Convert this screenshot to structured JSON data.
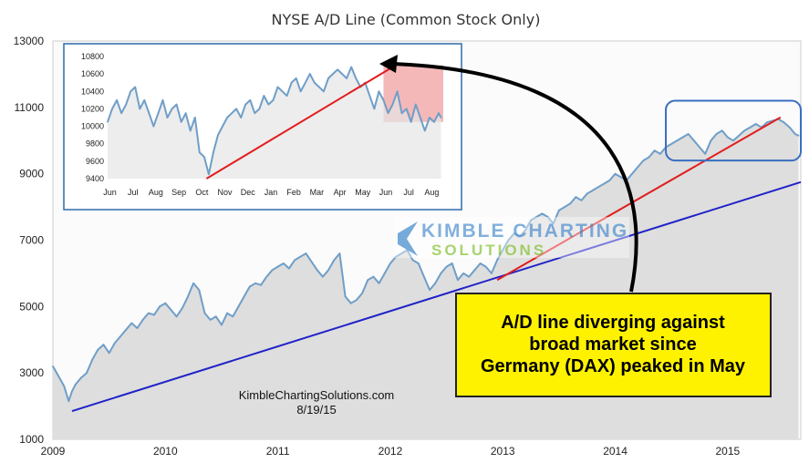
{
  "chart_data": [
    {
      "type": "line",
      "title": "NYSE A/D Line (Common Stock Only)",
      "xlabel": "",
      "ylabel": "",
      "xlim": [
        2009.0,
        2015.65
      ],
      "ylim": [
        1000,
        13000
      ],
      "grid": false,
      "y_ticks": [
        "1000",
        "3000",
        "5000",
        "7000",
        "9000",
        "11000",
        "13000"
      ],
      "x_ticks": [
        "2009",
        "2010",
        "2011",
        "2012",
        "2013",
        "2014",
        "2015"
      ],
      "series": [
        {
          "values_x": [
            2009.0,
            2009.05,
            2009.1,
            2009.14,
            2009.17,
            2009.2,
            2009.25,
            2009.3,
            2009.35,
            2009.4,
            2009.45,
            2009.5,
            2009.55,
            2009.6,
            2009.65,
            2009.7,
            2009.75,
            2009.8,
            2009.85,
            2009.9,
            2009.95,
            2010.0,
            2010.05,
            2010.1,
            2010.15,
            2010.2,
            2010.25,
            2010.3,
            2010.35,
            2010.4,
            2010.45,
            2010.5,
            2010.55,
            2010.6,
            2010.65,
            2010.7,
            2010.75,
            2010.8,
            2010.85,
            2010.9,
            2010.95,
            2011.0,
            2011.05,
            2011.1,
            2011.15,
            2011.2,
            2011.25,
            2011.3,
            2011.35,
            2011.4,
            2011.45,
            2011.5,
            2011.55,
            2011.6,
            2011.65,
            2011.7,
            2011.75,
            2011.8,
            2011.85,
            2011.9,
            2011.95,
            2012.0,
            2012.05,
            2012.1,
            2012.15,
            2012.2,
            2012.25,
            2012.3,
            2012.35,
            2012.4,
            2012.45,
            2012.5,
            2012.55,
            2012.6,
            2012.65,
            2012.7,
            2012.75,
            2012.8,
            2012.85,
            2012.9,
            2012.95,
            2013.0,
            2013.05,
            2013.1,
            2013.15,
            2013.2,
            2013.25,
            2013.3,
            2013.35,
            2013.4,
            2013.45,
            2013.5,
            2013.55,
            2013.6,
            2013.65,
            2013.7,
            2013.75,
            2013.8,
            2013.85,
            2013.9,
            2013.95,
            2014.0,
            2014.05,
            2014.1,
            2014.15,
            2014.2,
            2014.25,
            2014.3,
            2014.35,
            2014.4,
            2014.45,
            2014.5,
            2014.55,
            2014.6,
            2014.65,
            2014.7,
            2014.75,
            2014.8,
            2014.85,
            2014.9,
            2014.95,
            2015.0,
            2015.05,
            2015.1,
            2015.15,
            2015.2,
            2015.25,
            2015.3,
            2015.35,
            2015.4,
            2015.45,
            2015.5,
            2015.55,
            2015.6,
            2015.63
          ],
          "values": [
            3200,
            2900,
            2600,
            2150,
            2450,
            2650,
            2850,
            3000,
            3400,
            3700,
            3850,
            3600,
            3900,
            4100,
            4300,
            4500,
            4350,
            4600,
            4800,
            4750,
            5000,
            5100,
            4900,
            4700,
            4950,
            5300,
            5700,
            5500,
            4800,
            4600,
            4700,
            4450,
            4800,
            4700,
            5000,
            5300,
            5600,
            5700,
            5650,
            5900,
            6100,
            6200,
            6300,
            6150,
            6400,
            6500,
            6600,
            6350,
            6100,
            5900,
            6100,
            6400,
            6600,
            5300,
            5100,
            5200,
            5400,
            5800,
            5900,
            5700,
            6000,
            6300,
            6500,
            6600,
            6700,
            6400,
            6300,
            5900,
            5500,
            5700,
            6000,
            6200,
            6300,
            5800,
            6000,
            5900,
            6100,
            6300,
            6200,
            6000,
            6400,
            6700,
            7000,
            7200,
            7100,
            7300,
            7600,
            7700,
            7800,
            7700,
            7500,
            7900,
            8000,
            8100,
            8300,
            8200,
            8400,
            8500,
            8600,
            8700,
            8800,
            9000,
            8900,
            8800,
            9000,
            9200,
            9400,
            9500,
            9700,
            9600,
            9800,
            9900,
            10000,
            10100,
            10200,
            10000,
            9800,
            9600,
            10000,
            10200,
            10300,
            10100,
            10000,
            10150,
            10300,
            10400,
            10500,
            10400,
            10550,
            10600,
            10650,
            10550,
            10400,
            10200,
            10150
          ],
          "color": "#6f9ec8"
        }
      ],
      "trendlines": [
        {
          "x": [
            2009.17,
            2015.65
          ],
          "y": [
            1850,
            8750
          ],
          "color": "#1f22c8"
        },
        {
          "x": [
            2012.95,
            2015.47
          ],
          "y": [
            5800,
            10700
          ],
          "color": "#e21d1d"
        }
      ],
      "highlight_region": {
        "x": [
          2014.45,
          2015.65
        ],
        "y": [
          9400,
          11200
        ]
      },
      "colors": {
        "background_fill": "#dedede",
        "border": "#1e5aa0",
        "arrow": "#000000",
        "callout_bg": "#fff200"
      }
    },
    {
      "type": "line",
      "title": "",
      "inset": true,
      "xlabel": "",
      "ylabel": "",
      "ylim": [
        9400,
        10800
      ],
      "y_ticks": [
        "9400",
        "9600",
        "9800",
        "10000",
        "10200",
        "10400",
        "10600",
        "10800"
      ],
      "x_ticks": [
        "Jun",
        "Jul",
        "Aug",
        "Sep",
        "Oct",
        "Nov",
        "Dec",
        "Jan",
        "Feb",
        "Mar",
        "Apr",
        "May",
        "Jun",
        "Jul",
        "Aug"
      ],
      "xlim": [
        0,
        14.6
      ],
      "series": [
        {
          "values_x": [
            0,
            0.2,
            0.4,
            0.6,
            0.8,
            1.0,
            1.2,
            1.4,
            1.6,
            1.8,
            2.0,
            2.2,
            2.4,
            2.6,
            2.8,
            3.0,
            3.2,
            3.4,
            3.6,
            3.8,
            4.0,
            4.2,
            4.4,
            4.6,
            4.8,
            5.0,
            5.2,
            5.4,
            5.6,
            5.8,
            6.0,
            6.2,
            6.4,
            6.6,
            6.8,
            7.0,
            7.2,
            7.4,
            7.6,
            7.8,
            8.0,
            8.2,
            8.4,
            8.6,
            8.8,
            9.0,
            9.2,
            9.4,
            9.6,
            9.8,
            10.0,
            10.2,
            10.4,
            10.6,
            10.8,
            11.0,
            11.2,
            11.4,
            11.6,
            11.8,
            12.0,
            12.2,
            12.4,
            12.6,
            12.8,
            13.0,
            13.2,
            13.4,
            13.6,
            13.8,
            14.0,
            14.2,
            14.4,
            14.5
          ],
          "values": [
            10050,
            10200,
            10300,
            10150,
            10250,
            10400,
            10450,
            10200,
            10300,
            10150,
            10000,
            10150,
            10300,
            10100,
            10200,
            10250,
            10050,
            10150,
            9950,
            10100,
            9700,
            9650,
            9450,
            9700,
            9900,
            10000,
            10100,
            10150,
            10200,
            10100,
            10250,
            10300,
            10150,
            10200,
            10350,
            10250,
            10300,
            10450,
            10400,
            10350,
            10500,
            10550,
            10400,
            10500,
            10600,
            10500,
            10450,
            10400,
            10550,
            10600,
            10650,
            10600,
            10550,
            10680,
            10550,
            10450,
            10500,
            10350,
            10200,
            10400,
            10300,
            10150,
            10250,
            10400,
            10150,
            10200,
            10050,
            10250,
            10100,
            9950,
            10100,
            10050,
            10150,
            10100
          ],
          "color": "#6f9ec8"
        }
      ],
      "trendlines": [
        {
          "x": [
            4.3,
            12.4
          ],
          "y": [
            9400,
            10680
          ],
          "color": "#e21d1d"
        }
      ],
      "highlight_region": {
        "x": [
          12.0,
          14.6
        ],
        "y": [
          10050,
          10700
        ],
        "color": "#f0a0a0"
      }
    }
  ],
  "annotations": {
    "callout_text": [
      "A/D line diverging against",
      "broad market since",
      "Germany (DAX) peaked in May"
    ],
    "credit_site": "KimbleChartingSolutions.com",
    "credit_date": "8/19/15",
    "logo_line1": "KIMBLE CHARTING",
    "logo_line2": "SOLUTIONS"
  }
}
